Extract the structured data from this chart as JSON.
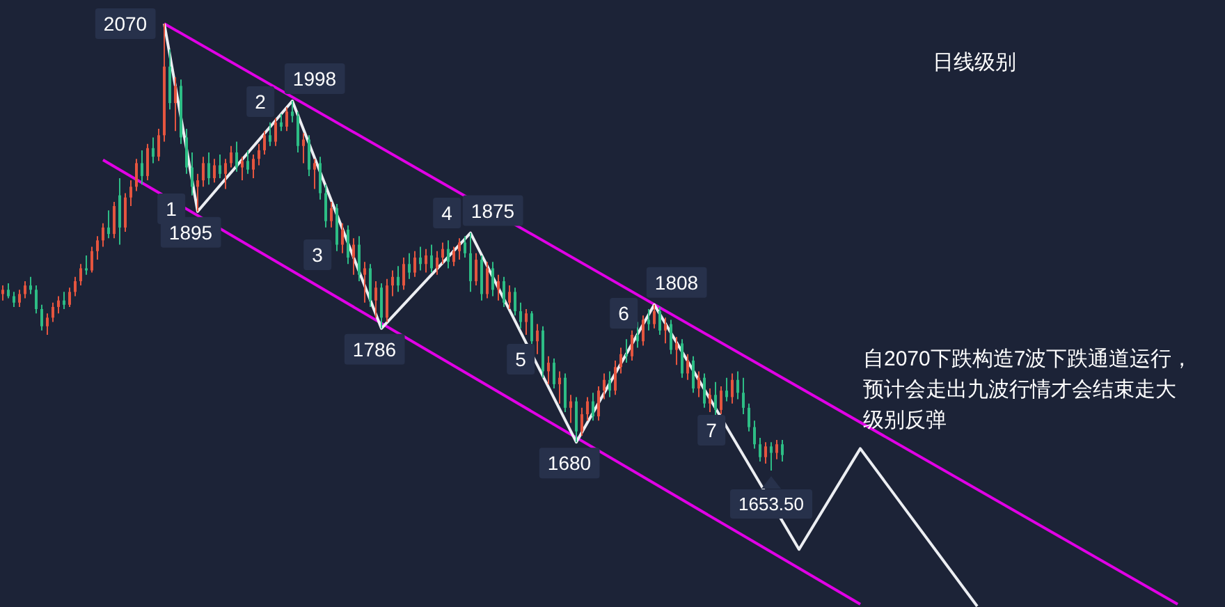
{
  "chart_data": {
    "type": "candlestick",
    "categories": [
      null,
      null,
      null,
      null,
      null,
      null,
      null,
      null,
      null,
      null,
      null,
      null,
      null,
      null,
      null,
      null,
      null,
      null,
      null,
      null,
      null,
      null,
      null,
      null,
      null,
      null,
      null,
      null,
      null,
      null,
      null,
      null,
      null,
      null,
      null,
      null,
      null,
      null,
      null,
      null,
      null,
      null,
      null,
      null,
      null,
      null,
      null,
      null,
      null,
      null,
      null,
      null,
      null,
      null,
      null,
      null,
      null,
      null,
      null,
      null,
      null,
      null,
      null,
      null,
      null,
      null,
      null,
      null,
      null,
      null,
      null,
      null,
      null,
      null,
      null,
      null,
      null,
      null,
      null,
      null,
      null,
      null,
      null,
      null,
      null,
      null,
      null,
      null,
      null,
      null,
      null,
      null,
      null,
      null,
      null,
      null,
      null,
      null,
      null,
      null,
      null,
      null,
      null,
      null,
      null,
      null,
      null,
      null,
      null,
      null,
      null,
      null,
      null,
      null,
      null,
      null,
      null,
      null,
      null,
      null,
      null,
      null,
      null,
      null,
      null,
      null,
      null,
      null,
      null,
      null,
      null,
      null,
      null,
      null,
      null,
      null,
      null,
      null,
      null,
      null,
      null,
      null,
      null,
      null,
      null,
      null,
      null,
      null,
      null,
      null,
      null,
      null,
      null,
      null,
      null,
      null,
      null,
      null,
      null,
      null,
      null,
      null,
      null,
      null,
      null,
      null,
      null,
      null,
      null,
      null,
      null,
      null,
      null,
      null,
      null,
      null,
      null,
      null,
      null,
      null,
      null,
      null,
      null,
      null,
      null,
      null,
      null,
      null,
      null,
      null,
      null,
      null,
      null,
      null,
      null,
      null,
      null,
      null,
      null,
      null,
      null,
      null,
      null,
      null,
      null,
      null,
      null,
      null,
      null,
      null,
      null,
      null,
      null,
      null,
      null,
      null,
      null,
      null,
      null,
      null
    ],
    "ohlc": [
      [
        1818,
        1826,
        1812,
        1822
      ],
      [
        1822,
        1828,
        1814,
        1816
      ],
      [
        1816,
        1820,
        1806,
        1810
      ],
      [
        1810,
        1822,
        1806,
        1818
      ],
      [
        1818,
        1830,
        1814,
        1826
      ],
      [
        1826,
        1834,
        1818,
        1822
      ],
      [
        1822,
        1826,
        1800,
        1804
      ],
      [
        1804,
        1808,
        1784,
        1788
      ],
      [
        1788,
        1800,
        1780,
        1796
      ],
      [
        1796,
        1810,
        1792,
        1806
      ],
      [
        1806,
        1816,
        1800,
        1812
      ],
      [
        1812,
        1820,
        1804,
        1808
      ],
      [
        1808,
        1824,
        1806,
        1820
      ],
      [
        1820,
        1834,
        1816,
        1830
      ],
      [
        1830,
        1846,
        1826,
        1842
      ],
      [
        1842,
        1854,
        1836,
        1840
      ],
      [
        1840,
        1862,
        1838,
        1858
      ],
      [
        1858,
        1872,
        1850,
        1868
      ],
      [
        1868,
        1884,
        1862,
        1880
      ],
      [
        1880,
        1896,
        1870,
        1874
      ],
      [
        1874,
        1904,
        1870,
        1900
      ],
      [
        1910,
        1926,
        1864,
        1880
      ],
      [
        1880,
        1912,
        1876,
        1908
      ],
      [
        1908,
        1924,
        1900,
        1918
      ],
      [
        1918,
        1944,
        1914,
        1940
      ],
      [
        1940,
        1952,
        1920,
        1928
      ],
      [
        1928,
        1958,
        1924,
        1954
      ],
      [
        1954,
        1964,
        1940,
        1946
      ],
      [
        1946,
        1972,
        1942,
        1966
      ],
      [
        1966,
        2070,
        1960,
        2030
      ],
      [
        2030,
        2046,
        1990,
        1996
      ],
      [
        1996,
        2020,
        1970,
        2012
      ],
      [
        2012,
        2018,
        1958,
        1964
      ],
      [
        1964,
        1972,
        1930,
        1936
      ],
      [
        1936,
        1950,
        1910,
        1918
      ],
      [
        1918,
        1930,
        1895,
        1924
      ],
      [
        1924,
        1946,
        1918,
        1940
      ],
      [
        1940,
        1950,
        1920,
        1926
      ],
      [
        1926,
        1944,
        1922,
        1938
      ],
      [
        1938,
        1948,
        1926,
        1930
      ],
      [
        1930,
        1944,
        1916,
        1940
      ],
      [
        1940,
        1956,
        1936,
        1950
      ],
      [
        1950,
        1960,
        1932,
        1936
      ],
      [
        1936,
        1946,
        1924,
        1942
      ],
      [
        1942,
        1952,
        1930,
        1934
      ],
      [
        1934,
        1948,
        1926,
        1944
      ],
      [
        1944,
        1958,
        1938,
        1952
      ],
      [
        1952,
        1970,
        1948,
        1966
      ],
      [
        1966,
        1978,
        1956,
        1960
      ],
      [
        1960,
        1982,
        1956,
        1978
      ],
      [
        1978,
        1986,
        1970,
        1974
      ],
      [
        1974,
        1992,
        1970,
        1988
      ],
      [
        1988,
        1998,
        1978,
        1984
      ],
      [
        1984,
        1988,
        1950,
        1956
      ],
      [
        1956,
        1968,
        1940,
        1962
      ],
      [
        1962,
        1966,
        1928,
        1934
      ],
      [
        1934,
        1944,
        1916,
        1940
      ],
      [
        1940,
        1946,
        1906,
        1912
      ],
      [
        1912,
        1920,
        1880,
        1886
      ],
      [
        1886,
        1904,
        1880,
        1898
      ],
      [
        1898,
        1902,
        1858,
        1864
      ],
      [
        1864,
        1884,
        1856,
        1878
      ],
      [
        1878,
        1882,
        1846,
        1852
      ],
      [
        1852,
        1870,
        1836,
        1864
      ],
      [
        1864,
        1872,
        1830,
        1836
      ],
      [
        1836,
        1848,
        1810,
        1842
      ],
      [
        1842,
        1846,
        1806,
        1812
      ],
      [
        1812,
        1830,
        1796,
        1824
      ],
      [
        1824,
        1828,
        1786,
        1796
      ],
      [
        1796,
        1832,
        1792,
        1826
      ],
      [
        1826,
        1840,
        1816,
        1834
      ],
      [
        1834,
        1844,
        1820,
        1826
      ],
      [
        1826,
        1852,
        1822,
        1846
      ],
      [
        1846,
        1856,
        1832,
        1838
      ],
      [
        1838,
        1858,
        1834,
        1852
      ],
      [
        1852,
        1862,
        1840,
        1846
      ],
      [
        1846,
        1860,
        1838,
        1854
      ],
      [
        1854,
        1864,
        1838,
        1842
      ],
      [
        1842,
        1858,
        1836,
        1852
      ],
      [
        1852,
        1866,
        1846,
        1860
      ],
      [
        1860,
        1868,
        1842,
        1848
      ],
      [
        1848,
        1862,
        1844,
        1858
      ],
      [
        1858,
        1870,
        1850,
        1866
      ],
      [
        1866,
        1872,
        1852,
        1856
      ],
      [
        1856,
        1875,
        1820,
        1830
      ],
      [
        1830,
        1856,
        1826,
        1850
      ],
      [
        1850,
        1854,
        1812,
        1818
      ],
      [
        1818,
        1848,
        1814,
        1842
      ],
      [
        1842,
        1848,
        1816,
        1822
      ],
      [
        1822,
        1836,
        1812,
        1830
      ],
      [
        1830,
        1834,
        1806,
        1810
      ],
      [
        1810,
        1826,
        1804,
        1820
      ],
      [
        1820,
        1824,
        1798,
        1802
      ],
      [
        1802,
        1810,
        1786,
        1792
      ],
      [
        1792,
        1804,
        1780,
        1800
      ],
      [
        1800,
        1802,
        1770,
        1774
      ],
      [
        1774,
        1790,
        1762,
        1784
      ],
      [
        1784,
        1788,
        1740,
        1746
      ],
      [
        1746,
        1760,
        1734,
        1754
      ],
      [
        1754,
        1758,
        1730,
        1734
      ],
      [
        1734,
        1746,
        1716,
        1740
      ],
      [
        1740,
        1744,
        1708,
        1712
      ],
      [
        1712,
        1724,
        1698,
        1718
      ],
      [
        1718,
        1722,
        1680,
        1690
      ],
      [
        1690,
        1712,
        1686,
        1706
      ],
      [
        1706,
        1722,
        1700,
        1718
      ],
      [
        1718,
        1726,
        1700,
        1704
      ],
      [
        1704,
        1732,
        1700,
        1728
      ],
      [
        1728,
        1744,
        1720,
        1738
      ],
      [
        1738,
        1746,
        1722,
        1728
      ],
      [
        1728,
        1756,
        1724,
        1750
      ],
      [
        1750,
        1768,
        1744,
        1762
      ],
      [
        1762,
        1776,
        1754,
        1760
      ],
      [
        1760,
        1784,
        1756,
        1780
      ],
      [
        1780,
        1792,
        1768,
        1774
      ],
      [
        1774,
        1798,
        1770,
        1794
      ],
      [
        1794,
        1804,
        1784,
        1790
      ],
      [
        1790,
        1808,
        1786,
        1802
      ],
      [
        1802,
        1806,
        1780,
        1784
      ],
      [
        1784,
        1796,
        1772,
        1790
      ],
      [
        1790,
        1794,
        1762,
        1766
      ],
      [
        1766,
        1778,
        1752,
        1772
      ],
      [
        1772,
        1776,
        1740,
        1744
      ],
      [
        1744,
        1762,
        1738,
        1756
      ],
      [
        1756,
        1760,
        1726,
        1730
      ],
      [
        1730,
        1746,
        1722,
        1740
      ],
      [
        1740,
        1744,
        1712,
        1716
      ],
      [
        1716,
        1730,
        1708,
        1724
      ],
      [
        1724,
        1736,
        1704,
        1710
      ],
      [
        1710,
        1732,
        1706,
        1728
      ],
      [
        1728,
        1740,
        1718,
        1722
      ],
      [
        1722,
        1744,
        1716,
        1738
      ],
      [
        1738,
        1746,
        1720,
        1726
      ],
      [
        1726,
        1740,
        1706,
        1712
      ],
      [
        1712,
        1716,
        1690,
        1694
      ],
      [
        1694,
        1700,
        1674,
        1678
      ],
      [
        1678,
        1684,
        1662,
        1666
      ],
      [
        1666,
        1680,
        1660,
        1676
      ],
      [
        1676,
        1680,
        1653.5,
        1670
      ],
      [
        1670,
        1682,
        1664,
        1678
      ],
      [
        1678,
        1682,
        1662,
        1668
      ],
      null,
      null,
      null,
      null,
      null,
      null,
      null,
      null,
      null,
      null,
      null,
      null,
      null,
      null,
      null,
      null,
      null,
      null,
      null,
      null,
      null,
      null,
      null,
      null,
      null,
      null,
      null,
      null,
      null,
      null,
      null,
      null,
      null,
      null,
      null,
      null,
      null,
      null,
      null,
      null,
      null,
      null,
      null,
      null,
      null,
      null,
      null,
      null,
      null,
      null,
      null,
      null,
      null,
      null,
      null,
      null,
      null,
      null,
      null,
      null,
      null,
      null,
      null,
      null,
      null,
      null,
      null,
      null,
      null,
      null,
      null,
      null,
      null,
      null,
      null,
      null,
      null,
      null,
      null
    ],
    "value_labels": [
      null,
      null,
      null,
      null,
      null,
      null,
      null,
      null,
      null,
      null,
      null,
      null,
      null,
      null,
      null,
      null,
      null,
      null,
      null,
      null,
      null,
      null,
      null,
      null,
      null,
      null,
      null,
      null,
      null,
      null,
      null,
      null,
      null,
      null,
      null,
      null,
      null,
      null,
      null,
      null,
      null,
      null,
      null,
      null,
      null,
      null,
      null,
      null,
      null,
      null,
      null,
      null,
      null,
      null,
      null,
      null,
      null,
      null,
      null,
      null,
      null,
      null,
      null,
      null,
      null,
      null,
      null,
      null,
      null,
      null,
      null,
      null,
      null,
      null,
      null,
      null,
      null,
      null,
      null,
      null,
      null,
      null,
      null,
      null,
      null,
      null,
      null,
      null,
      null,
      null,
      null,
      null,
      null,
      null,
      null,
      null,
      null,
      null,
      null,
      null,
      null,
      null,
      null,
      null,
      null,
      null,
      null,
      null,
      null,
      null,
      null,
      null,
      null,
      null,
      null,
      null,
      null,
      null,
      null,
      null,
      null,
      null,
      null,
      null,
      null,
      null,
      null,
      null,
      null,
      null,
      null,
      null,
      null,
      null,
      null,
      null,
      null,
      null,
      "1653.50",
      null,
      null,
      null,
      null,
      null,
      null,
      null,
      null,
      null,
      null,
      null,
      null,
      null,
      null,
      null,
      null,
      null,
      null,
      null,
      null,
      null,
      null,
      null,
      null,
      null,
      null,
      null,
      null,
      null,
      null,
      null,
      null,
      null,
      null,
      null,
      null,
      null,
      null,
      null,
      null,
      null,
      null,
      null,
      null,
      null,
      null,
      null,
      null,
      null,
      null,
      null,
      null,
      null,
      null,
      null,
      null,
      null,
      null,
      null,
      null,
      null,
      null,
      null,
      null,
      null,
      null,
      null,
      null,
      null,
      null,
      null,
      null,
      null,
      null,
      null,
      null,
      null,
      null,
      null,
      null,
      null
    ],
    "series": [
      {
        "type": "line",
        "color": "#e100e6",
        "values": [
          null,
          null,
          null,
          null,
          null,
          null,
          null,
          null,
          null,
          null,
          null,
          null,
          null,
          null,
          null,
          null,
          null,
          null,
          null,
          null,
          null,
          null,
          null,
          null,
          null,
          null,
          null,
          null,
          null,
          2070,
          null,
          null,
          null,
          null,
          null,
          null,
          null,
          null,
          null,
          null,
          null,
          null,
          null,
          null,
          null,
          null,
          null,
          null,
          null,
          null,
          null,
          null,
          null,
          null,
          null,
          null,
          null,
          null,
          null,
          null,
          null,
          null,
          null,
          null,
          null,
          null,
          null,
          null,
          null,
          null,
          null,
          null,
          null,
          null,
          null,
          null,
          null,
          null,
          null,
          null,
          null,
          null,
          null,
          null,
          null,
          null,
          null,
          null,
          null,
          null,
          null,
          null,
          null,
          null,
          null,
          null,
          null,
          null,
          null,
          null,
          null,
          null,
          null,
          null,
          null,
          null,
          null,
          null,
          null,
          null,
          null,
          null,
          null,
          null,
          null,
          null,
          null,
          null,
          null,
          null,
          null,
          null,
          null,
          null,
          null,
          null,
          null,
          null,
          null,
          null,
          null,
          null,
          null,
          null,
          null,
          null,
          null,
          null,
          null,
          null,
          null,
          null,
          null,
          null,
          null,
          null,
          null,
          null,
          null,
          null,
          null,
          null,
          null,
          null,
          null,
          null,
          null,
          null,
          null,
          null,
          null,
          null,
          null,
          null,
          null,
          null,
          null,
          null,
          null,
          null,
          null,
          null,
          null,
          null,
          null,
          null,
          null,
          null,
          null,
          null,
          null,
          null,
          null,
          null,
          null,
          null,
          null,
          null,
          null,
          null,
          null,
          null,
          null,
          null,
          null,
          null,
          null,
          null,
          null,
          null,
          null,
          null,
          null,
          null,
          null,
          null,
          null,
          null,
          null,
          null,
          null,
          1529,
          null,
          null,
          null,
          null,
          null,
          null,
          null,
          null
        ]
      },
      {
        "type": "line",
        "color": "#e100e6",
        "values": [
          null,
          null,
          null,
          null,
          null,
          null,
          null,
          null,
          null,
          null,
          null,
          null,
          null,
          null,
          null,
          null,
          null,
          null,
          1943,
          null,
          null,
          null,
          null,
          null,
          null,
          null,
          null,
          null,
          null,
          null,
          null,
          null,
          null,
          null,
          null,
          null,
          null,
          null,
          null,
          null,
          null,
          null,
          null,
          null,
          null,
          null,
          null,
          null,
          null,
          null,
          null,
          null,
          null,
          null,
          null,
          null,
          null,
          null,
          null,
          null,
          null,
          null,
          null,
          null,
          null,
          null,
          null,
          null,
          null,
          null,
          null,
          null,
          null,
          null,
          null,
          null,
          null,
          null,
          null,
          null,
          null,
          null,
          null,
          null,
          null,
          null,
          null,
          null,
          null,
          null,
          null,
          null,
          null,
          null,
          null,
          null,
          null,
          null,
          null,
          null,
          null,
          null,
          null,
          null,
          null,
          null,
          null,
          null,
          null,
          null,
          null,
          null,
          null,
          null,
          null,
          null,
          null,
          null,
          null,
          null,
          null,
          null,
          null,
          null,
          null,
          null,
          null,
          null,
          null,
          null,
          null,
          null,
          null,
          null,
          null,
          null,
          null,
          null,
          null,
          null,
          null,
          null,
          null,
          null,
          null,
          null,
          null,
          null,
          null,
          null,
          null,
          null,
          null,
          null,
          1529,
          null,
          null,
          null,
          null,
          null,
          null,
          null,
          null,
          null,
          null,
          null,
          null,
          null,
          null,
          null,
          null,
          null,
          null,
          null,
          null,
          null,
          null,
          null,
          null,
          null,
          null,
          null,
          null,
          null,
          null,
          null,
          null,
          null,
          null,
          null,
          null,
          null,
          null,
          null,
          null,
          null,
          null,
          null,
          null,
          null,
          null,
          null,
          null,
          null,
          null,
          null,
          null,
          null,
          null,
          null,
          null,
          null,
          null,
          null,
          null,
          null,
          null,
          null,
          null,
          null
        ]
      },
      {
        "type": "line",
        "color": "#eceef2",
        "values": [
          null,
          null,
          null,
          null,
          null,
          null,
          null,
          null,
          null,
          null,
          null,
          null,
          null,
          null,
          null,
          null,
          null,
          null,
          null,
          null,
          null,
          null,
          null,
          null,
          null,
          null,
          null,
          null,
          null,
          2070,
          null,
          null,
          null,
          null,
          null,
          1895,
          null,
          null,
          null,
          null,
          null,
          null,
          null,
          null,
          null,
          null,
          null,
          null,
          null,
          null,
          null,
          null,
          1998,
          null,
          null,
          null,
          null,
          null,
          null,
          null,
          null,
          null,
          null,
          null,
          null,
          null,
          null,
          null,
          1786,
          null,
          null,
          null,
          null,
          null,
          null,
          null,
          null,
          null,
          null,
          null,
          null,
          null,
          null,
          null,
          1875,
          null,
          null,
          null,
          null,
          null,
          null,
          null,
          null,
          null,
          null,
          null,
          null,
          null,
          null,
          null,
          null,
          null,
          null,
          1680,
          null,
          null,
          null,
          null,
          null,
          null,
          null,
          null,
          null,
          null,
          null,
          null,
          null,
          1808,
          null,
          null,
          null,
          null,
          null,
          null,
          null,
          null,
          null,
          null,
          null,
          null,
          null,
          null,
          null,
          null,
          null,
          null,
          null,
          null,
          null,
          null,
          null,
          null,
          null,
          1580,
          null,
          null,
          null,
          null,
          null,
          null,
          null,
          null,
          null,
          null,
          1674,
          null,
          null,
          null,
          null,
          null,
          null,
          null,
          null,
          null,
          null,
          null,
          null,
          null,
          null,
          null,
          null,
          null,
          null,
          null,
          null,
          1527,
          null,
          null,
          null,
          null,
          null,
          null,
          null,
          null,
          null,
          null,
          null,
          null,
          null,
          null,
          null,
          null,
          null,
          null,
          null,
          null,
          null,
          null,
          null,
          null,
          null,
          null,
          null,
          null,
          null,
          null,
          null,
          null,
          null,
          null,
          null,
          null,
          null,
          null,
          null,
          null,
          null,
          null,
          null,
          null
        ],
        "value_labels": [
          null,
          null,
          null,
          null,
          null,
          null,
          null,
          null,
          null,
          null,
          null,
          null,
          null,
          null,
          null,
          null,
          null,
          null,
          null,
          null,
          null,
          null,
          null,
          null,
          null,
          null,
          null,
          null,
          null,
          "2070",
          null,
          null,
          null,
          null,
          null,
          "1895",
          null,
          null,
          null,
          null,
          null,
          null,
          null,
          null,
          null,
          null,
          null,
          null,
          null,
          null,
          null,
          null,
          "1998",
          null,
          null,
          null,
          null,
          null,
          null,
          null,
          null,
          null,
          null,
          null,
          null,
          null,
          null,
          null,
          "1786",
          null,
          null,
          null,
          null,
          null,
          null,
          null,
          null,
          null,
          null,
          null,
          null,
          null,
          null,
          null,
          "1875",
          null,
          null,
          null,
          null,
          null,
          null,
          null,
          null,
          null,
          null,
          null,
          null,
          null,
          null,
          null,
          null,
          null,
          null,
          "1680",
          null,
          null,
          null,
          null,
          null,
          null,
          null,
          null,
          null,
          null,
          null,
          null,
          null,
          "1808",
          null,
          null,
          null,
          null,
          null,
          null,
          null,
          null,
          null,
          null,
          null,
          null,
          null,
          null,
          null,
          null,
          null,
          null,
          null,
          null,
          null,
          null,
          null,
          null,
          null,
          null,
          null,
          null,
          null,
          null,
          null,
          null,
          null,
          null,
          null,
          null,
          null,
          null,
          null,
          null,
          null,
          null,
          null,
          null,
          null,
          null,
          null,
          null,
          null,
          null,
          null,
          null,
          null,
          null,
          null,
          null,
          null,
          null,
          null,
          null,
          null,
          null,
          null,
          null,
          null,
          null,
          null,
          null,
          null,
          null,
          null,
          null,
          null,
          null,
          null,
          null,
          null,
          null,
          null,
          null,
          null,
          null,
          null,
          null,
          null,
          null,
          null,
          null,
          null,
          null,
          null,
          null,
          null,
          null,
          null,
          null,
          null,
          null,
          null,
          null,
          null,
          null
        ]
      }
    ],
    "annotations": [
      "日线级别",
      "自2070下跌构造7波下跌通道运行，预计会走出九波行情才会结束走大级别反弹",
      "1",
      "2",
      "3",
      "4",
      "5",
      "6",
      "7"
    ]
  }
}
